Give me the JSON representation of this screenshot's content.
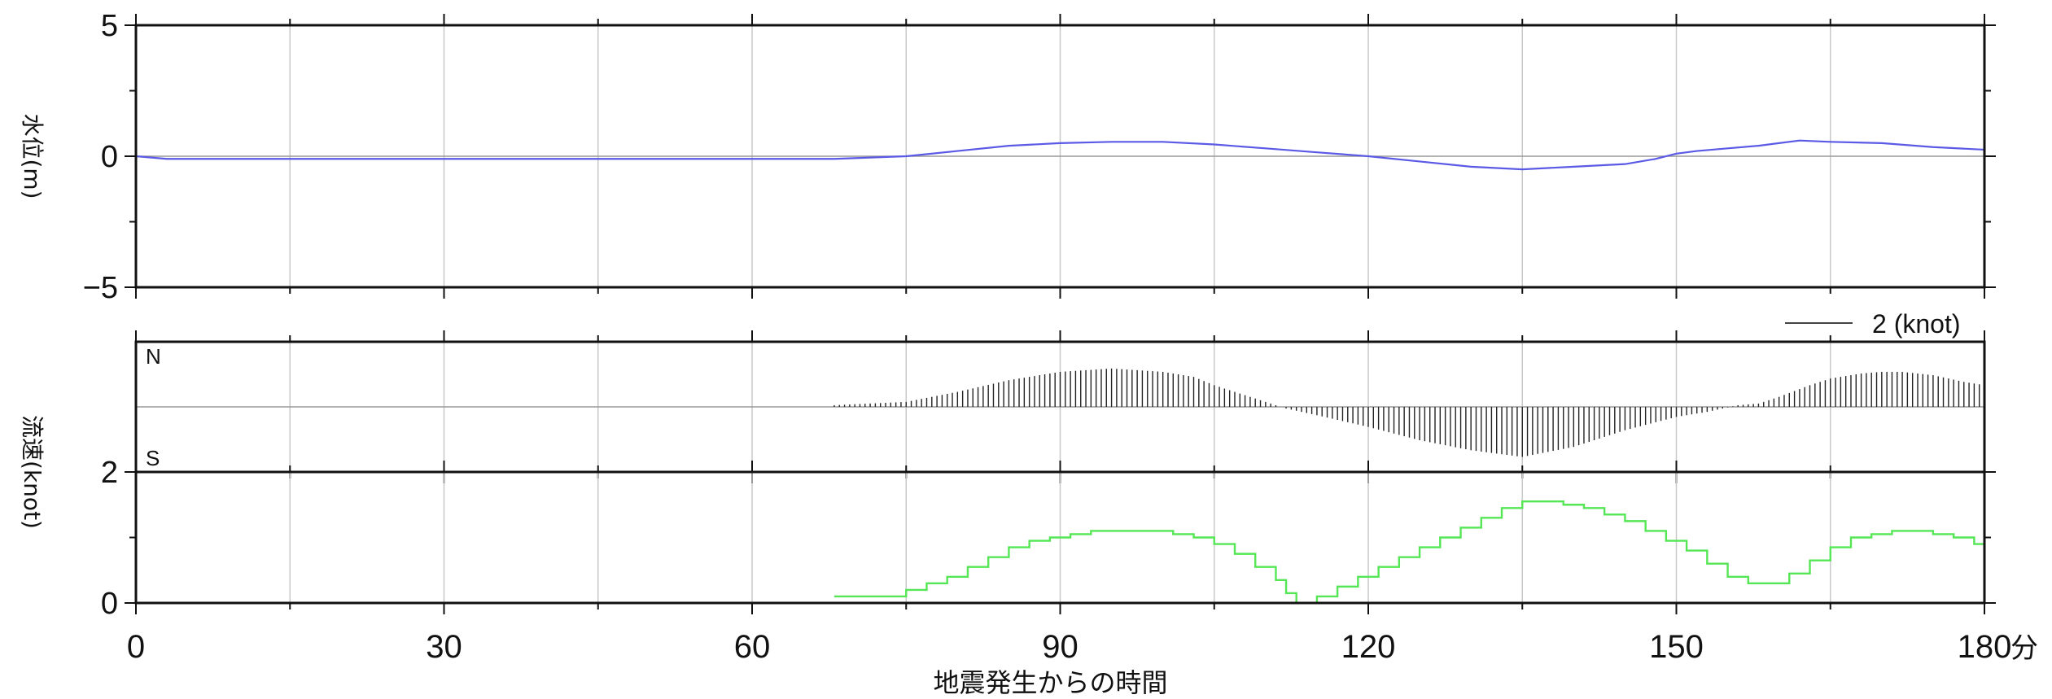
{
  "chart_data": [
    {
      "type": "line",
      "ylabel": "水位(m)",
      "ylim": [
        -5,
        5
      ],
      "yticks": [
        "5",
        "0",
        "−5"
      ],
      "xlim": [
        0,
        180
      ],
      "grid": true,
      "series": [
        {
          "color": "#5a5ae6",
          "x": [
            0,
            3,
            10,
            20,
            30,
            40,
            50,
            60,
            68,
            75,
            80,
            85,
            90,
            95,
            100,
            105,
            110,
            115,
            120,
            125,
            130,
            135,
            140,
            145,
            148,
            150,
            152,
            155,
            158,
            160,
            162,
            165,
            170,
            175,
            180
          ],
          "y": [
            0,
            -0.1,
            -0.1,
            -0.1,
            -0.1,
            -0.1,
            -0.1,
            -0.1,
            -0.1,
            0,
            0.2,
            0.4,
            0.5,
            0.55,
            0.55,
            0.45,
            0.3,
            0.15,
            0,
            -0.2,
            -0.4,
            -0.5,
            -0.4,
            -0.3,
            -0.1,
            0.1,
            0.2,
            0.3,
            0.4,
            0.5,
            0.6,
            0.55,
            0.5,
            0.35,
            0.25
          ]
        }
      ]
    },
    {
      "type": "vector",
      "ylabel": "流速(knot)",
      "legend_label": "2 (knot)",
      "north_label": "N",
      "south_label": "S",
      "color": "#222222",
      "x_start": 68,
      "x_end": 180,
      "step": 0.5,
      "knot_x": [
        68,
        70,
        75,
        80,
        85,
        90,
        95,
        100,
        103,
        105,
        108,
        110,
        112,
        115,
        120,
        125,
        130,
        135,
        140,
        145,
        150,
        153,
        156,
        158,
        160,
        163,
        165,
        168,
        170,
        172,
        175,
        178,
        180
      ],
      "knot_v": [
        0.05,
        0.08,
        0.15,
        0.45,
        0.8,
        1.05,
        1.15,
        1.05,
        0.9,
        0.65,
        0.35,
        0.15,
        -0.05,
        -0.25,
        -0.6,
        -1.0,
        -1.3,
        -1.5,
        -1.2,
        -0.7,
        -0.3,
        -0.15,
        0.05,
        0.1,
        0.3,
        0.65,
        0.85,
        1.0,
        1.05,
        1.05,
        0.95,
        0.75,
        0.65
      ]
    },
    {
      "type": "line",
      "ylabel": "",
      "ylim": [
        0,
        2
      ],
      "yticks": [
        "2",
        "0"
      ],
      "xlim": [
        0,
        180
      ],
      "grid": true,
      "step_plot": true,
      "series": [
        {
          "color": "#55e655",
          "x": [
            68,
            70,
            75,
            77,
            79,
            81,
            83,
            85,
            87,
            89,
            91,
            93,
            95,
            97,
            99,
            101,
            103,
            105,
            107,
            109,
            111,
            112,
            113,
            115,
            117,
            119,
            121,
            123,
            125,
            127,
            129,
            131,
            133,
            135,
            137,
            139,
            141,
            143,
            145,
            147,
            149,
            151,
            153,
            155,
            157,
            159,
            161,
            163,
            165,
            167,
            169,
            171,
            173,
            175,
            177,
            179,
            180
          ],
          "y": [
            0.1,
            0.1,
            0.2,
            0.3,
            0.4,
            0.55,
            0.7,
            0.85,
            0.95,
            1.0,
            1.05,
            1.1,
            1.1,
            1.1,
            1.1,
            1.05,
            1.0,
            0.9,
            0.75,
            0.55,
            0.35,
            0.15,
            0.0,
            0.1,
            0.25,
            0.4,
            0.55,
            0.7,
            0.85,
            1.0,
            1.15,
            1.3,
            1.45,
            1.55,
            1.55,
            1.5,
            1.45,
            1.35,
            1.25,
            1.1,
            0.95,
            0.8,
            0.6,
            0.4,
            0.3,
            0.3,
            0.45,
            0.65,
            0.85,
            1.0,
            1.05,
            1.1,
            1.1,
            1.05,
            1.0,
            0.9,
            0.85
          ]
        }
      ]
    }
  ],
  "xaxis": {
    "label": "地震発生からの時間",
    "unit": "分",
    "ticks": [
      0,
      30,
      60,
      90,
      120,
      150,
      180
    ],
    "tick_labels": [
      "0",
      "30",
      "60",
      "90",
      "120",
      "150",
      "180"
    ],
    "minor_step": 15
  }
}
